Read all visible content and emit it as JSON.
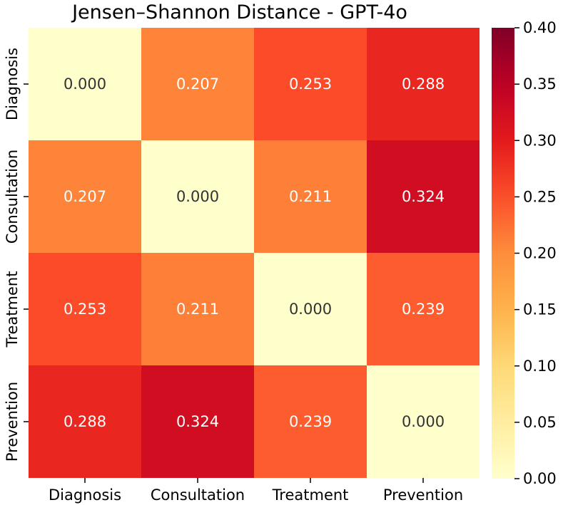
{
  "chart_data": {
    "type": "heatmap",
    "title": "Jensen–Shannon Distance - GPT-4o",
    "row_labels": [
      "Diagnosis",
      "Consultation",
      "Treatment",
      "Prevention"
    ],
    "col_labels": [
      "Diagnosis",
      "Consultation",
      "Treatment",
      "Prevention"
    ],
    "values": [
      [
        0.0,
        0.207,
        0.253,
        0.288
      ],
      [
        0.207,
        0.0,
        0.211,
        0.324
      ],
      [
        0.253,
        0.211,
        0.0,
        0.239
      ],
      [
        0.288,
        0.324,
        0.239,
        0.0
      ]
    ],
    "value_format_decimals": 3,
    "colormap": "YlOrRd",
    "vmin": 0.0,
    "vmax": 0.4,
    "colorbar_ticks": [
      "0.00",
      "0.05",
      "0.10",
      "0.15",
      "0.20",
      "0.25",
      "0.30",
      "0.35",
      "0.40"
    ],
    "xlabel": "",
    "ylabel": ""
  }
}
